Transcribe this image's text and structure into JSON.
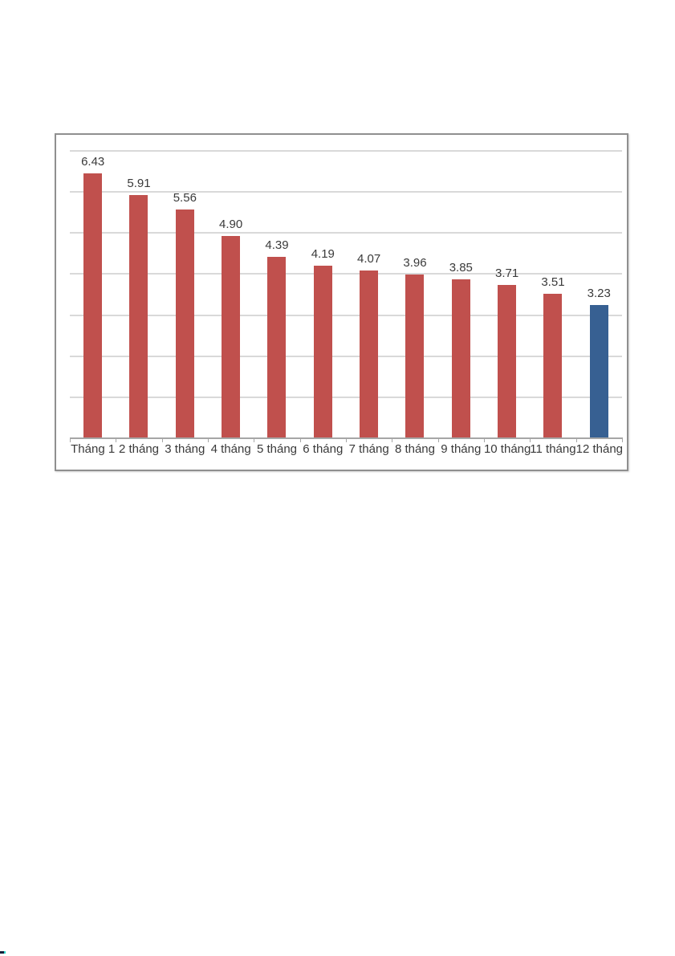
{
  "page": {
    "background": "#ffffff"
  },
  "chart_data": {
    "type": "bar",
    "title": "",
    "xlabel": "",
    "ylabel": "",
    "categories": [
      "Tháng 1",
      "2 tháng",
      "3 tháng",
      "4 tháng",
      "5 tháng",
      "6 tháng",
      "7 tháng",
      "8 tháng",
      "9 tháng",
      "10 tháng",
      "11 tháng",
      "12 tháng"
    ],
    "values": [
      6.43,
      5.91,
      5.56,
      4.9,
      4.39,
      4.19,
      4.07,
      3.96,
      3.85,
      3.71,
      3.51,
      3.23
    ],
    "value_labels": [
      "6.43",
      "5.91",
      "5.56",
      "4.90",
      "4.39",
      "4.19",
      "4.07",
      "3.96",
      "3.85",
      "3.71",
      "3.51",
      "3.23"
    ],
    "ylim": [
      0,
      7
    ],
    "gridline_step": 1,
    "grid": true,
    "y_tick_labels_shown": false,
    "legend_position": "none",
    "colors": {
      "bar_default": "#C0504D",
      "bar_highlight": "#376092",
      "gridline": "#d9d9d9",
      "axis_line": "#a6a6a6",
      "label_text": "#3a3a3a",
      "frame_border": "#8f8f8f"
    },
    "highlight_index": 11
  },
  "artifact": {
    "dark_color": "#141e38",
    "cyan_color": "#2bd8cf"
  }
}
